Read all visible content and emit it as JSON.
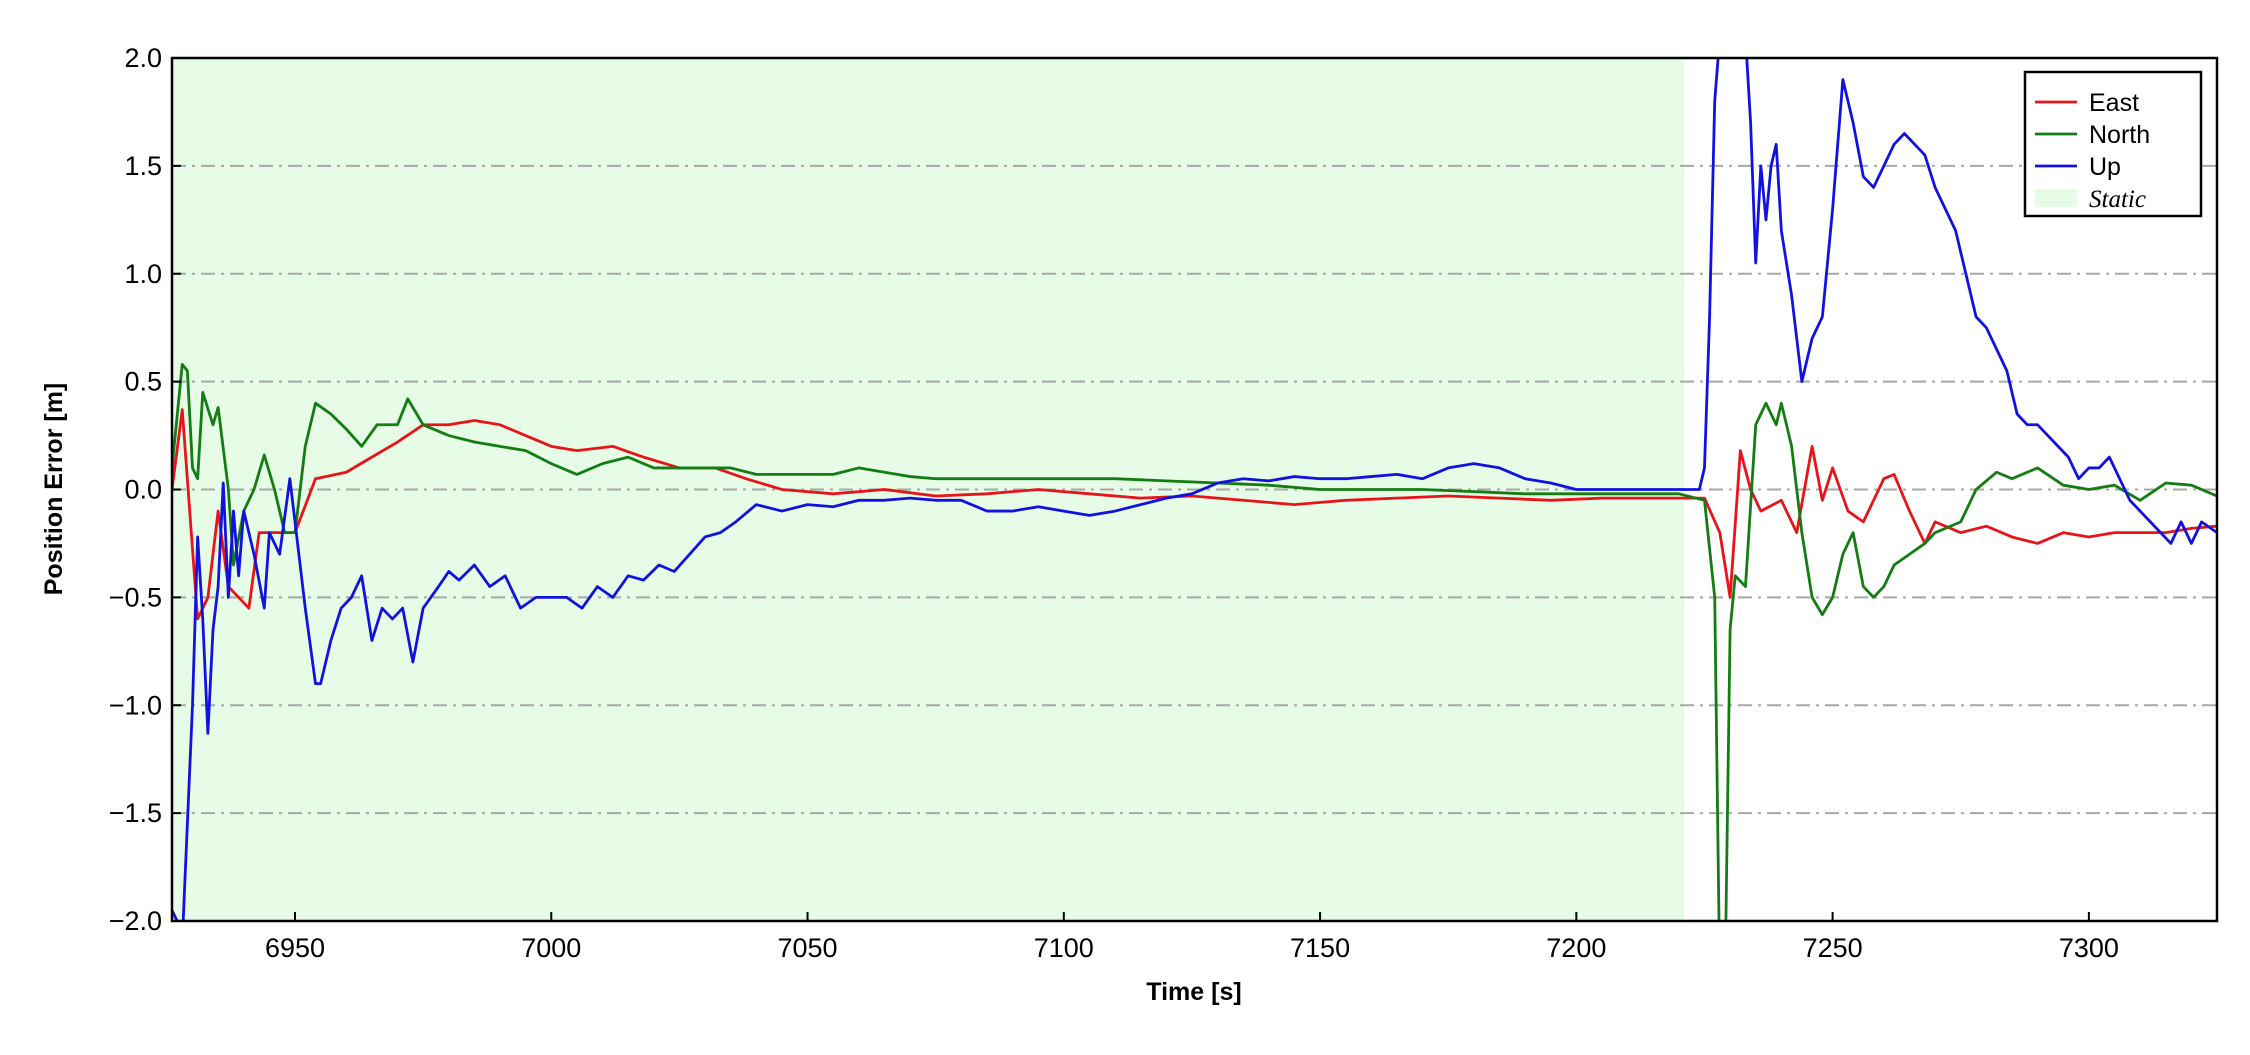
{
  "chart_data": {
    "type": "line",
    "xlabel": "Time [s]",
    "ylabel": "Position Error [m]",
    "xlim": [
      6926,
      7325
    ],
    "ylim": [
      -2,
      2
    ],
    "xticks": [
      6950,
      7000,
      7050,
      7100,
      7150,
      7200,
      7250,
      7300
    ],
    "yticks": [
      {
        "value": -2,
        "label": "−2.0"
      },
      {
        "value": -1.5,
        "label": "−1.5"
      },
      {
        "value": -1,
        "label": "−1.0"
      },
      {
        "value": -0.5,
        "label": "−0.5"
      },
      {
        "value": 0,
        "label": "0.0"
      },
      0.5,
      {
        "value": 1,
        "label": "1.0"
      },
      1.5,
      {
        "value": 2,
        "label": "2.0"
      }
    ],
    "grid": true,
    "legend": "upper right",
    "span": {
      "label": "Static",
      "x": [
        6926,
        7221
      ],
      "color": "#e6fce6"
    },
    "series": [
      {
        "name": "East",
        "color": "#e8141a",
        "x": [
          6926,
          6928,
          6931,
          6933,
          6935,
          6937,
          6941,
          6943,
          6948,
          6950,
          6954,
          6960,
          6965,
          6970,
          6975,
          6980,
          6985,
          6990,
          6995,
          7000,
          7005,
          7012,
          7018,
          7025,
          7032,
          7038,
          7045,
          7055,
          7065,
          7075,
          7085,
          7095,
          7105,
          7115,
          7125,
          7135,
          7145,
          7155,
          7165,
          7175,
          7185,
          7195,
          7205,
          7215,
          7225,
          7228,
          7230,
          7232,
          7234,
          7236,
          7240,
          7243,
          7246,
          7248,
          7250,
          7253,
          7256,
          7260,
          7262,
          7265,
          7268,
          7270,
          7275,
          7280,
          7285,
          7290,
          7295,
          7300,
          7305,
          7310,
          7315,
          7320,
          7325
        ],
        "values": [
          0,
          0.37,
          -0.6,
          -0.5,
          -0.1,
          -0.45,
          -0.55,
          -0.2,
          -0.2,
          -0.2,
          0.05,
          0.08,
          0.15,
          0.22,
          0.3,
          0.3,
          0.32,
          0.3,
          0.25,
          0.2,
          0.18,
          0.2,
          0.15,
          0.1,
          0.1,
          0.05,
          0,
          -0.02,
          0,
          -0.03,
          -0.02,
          0,
          -0.02,
          -0.04,
          -0.03,
          -0.05,
          -0.07,
          -0.05,
          -0.04,
          -0.03,
          -0.04,
          -0.05,
          -0.04,
          -0.04,
          -0.04,
          -0.2,
          -0.5,
          0.18,
          0,
          -0.1,
          -0.05,
          -0.2,
          0.2,
          -0.05,
          0.1,
          -0.1,
          -0.15,
          0.05,
          0.07,
          -0.1,
          -0.25,
          -0.15,
          -0.2,
          -0.17,
          -0.22,
          -0.25,
          -0.2,
          -0.22,
          -0.2,
          -0.2,
          -0.2,
          -0.18,
          -0.17
        ]
      },
      {
        "name": "North",
        "color": "#137d13",
        "x": [
          6926,
          6928,
          6929,
          6930,
          6931,
          6932,
          6934,
          6935,
          6937,
          6938,
          6940,
          6942,
          6944,
          6946,
          6948,
          6950,
          6952,
          6954,
          6957,
          6960,
          6963,
          6966,
          6970,
          6972,
          6975,
          6980,
          6985,
          6990,
          6995,
          7000,
          7005,
          7010,
          7015,
          7020,
          7025,
          7030,
          7035,
          7040,
          7045,
          7050,
          7055,
          7060,
          7065,
          7070,
          7075,
          7080,
          7090,
          7100,
          7110,
          7120,
          7130,
          7140,
          7150,
          7160,
          7170,
          7180,
          7190,
          7200,
          7210,
          7220,
          7225,
          7227,
          7228,
          7229,
          7230,
          7231,
          7233,
          7235,
          7237,
          7239,
          7240,
          7242,
          7244,
          7246,
          7248,
          7250,
          7252,
          7254,
          7256,
          7258,
          7260,
          7262,
          7265,
          7268,
          7270,
          7275,
          7278,
          7282,
          7285,
          7290,
          7295,
          7300,
          7305,
          7310,
          7315,
          7320,
          7325
        ],
        "values": [
          0.1,
          0.58,
          0.55,
          0.1,
          0.05,
          0.45,
          0.3,
          0.38,
          0,
          -0.35,
          -0.1,
          0,
          0.16,
          0,
          -0.2,
          -0.2,
          0.2,
          0.4,
          0.35,
          0.28,
          0.2,
          0.3,
          0.3,
          0.42,
          0.3,
          0.25,
          0.22,
          0.2,
          0.18,
          0.12,
          0.07,
          0.12,
          0.15,
          0.1,
          0.1,
          0.1,
          0.1,
          0.07,
          0.07,
          0.07,
          0.07,
          0.1,
          0.08,
          0.06,
          0.05,
          0.05,
          0.05,
          0.05,
          0.05,
          0.04,
          0.03,
          0.02,
          0,
          0,
          0,
          -0.01,
          -0.02,
          -0.02,
          -0.02,
          -0.02,
          -0.05,
          -0.5,
          -2.3,
          -2.3,
          -0.65,
          -0.4,
          -0.45,
          0.3,
          0.4,
          0.3,
          0.4,
          0.2,
          -0.2,
          -0.5,
          -0.58,
          -0.5,
          -0.3,
          -0.2,
          -0.45,
          -0.5,
          -0.45,
          -0.35,
          -0.3,
          -0.25,
          -0.2,
          -0.15,
          0,
          0.08,
          0.05,
          0.1,
          0.02,
          0,
          0.02,
          -0.05,
          0.03,
          0.02,
          -0.03
        ]
      },
      {
        "name": "Up",
        "color": "#1212e0",
        "x": [
          6926,
          6927,
          6928,
          6930,
          6931,
          6932,
          6933,
          6934,
          6935,
          6936,
          6937,
          6938,
          6939,
          6940,
          6942,
          6944,
          6945,
          6947,
          6949,
          6950,
          6952,
          6954,
          6955,
          6957,
          6959,
          6961,
          6963,
          6965,
          6967,
          6969,
          6971,
          6973,
          6975,
          6978,
          6980,
          6982,
          6985,
          6988,
          6991,
          6994,
          6997,
          7000,
          7003,
          7006,
          7009,
          7012,
          7015,
          7018,
          7021,
          7024,
          7027,
          7030,
          7033,
          7036,
          7040,
          7045,
          7050,
          7055,
          7060,
          7065,
          7070,
          7075,
          7080,
          7085,
          7090,
          7095,
          7100,
          7105,
          7110,
          7115,
          7120,
          7125,
          7130,
          7135,
          7140,
          7145,
          7150,
          7155,
          7160,
          7165,
          7170,
          7175,
          7180,
          7185,
          7190,
          7195,
          7200,
          7205,
          7210,
          7215,
          7220,
          7224,
          7225,
          7226,
          7227,
          7228,
          7233,
          7234,
          7235,
          7236,
          7237,
          7238,
          7239,
          7240,
          7242,
          7244,
          7246,
          7248,
          7250,
          7252,
          7254,
          7256,
          7258,
          7260,
          7262,
          7264,
          7266,
          7268,
          7270,
          7272,
          7274,
          7276,
          7278,
          7280,
          7282,
          7284,
          7286,
          7288,
          7290,
          7292,
          7294,
          7296,
          7298,
          7300,
          7302,
          7304,
          7306,
          7308,
          7310,
          7312,
          7314,
          7316,
          7318,
          7320,
          7322,
          7325
        ],
        "values": [
          -1.95,
          -2,
          -2.1,
          -1,
          -0.22,
          -0.6,
          -1.13,
          -0.65,
          -0.45,
          0.03,
          -0.5,
          -0.1,
          -0.4,
          -0.1,
          -0.3,
          -0.55,
          -0.2,
          -0.3,
          0.05,
          -0.15,
          -0.55,
          -0.9,
          -0.9,
          -0.7,
          -0.55,
          -0.5,
          -0.4,
          -0.7,
          -0.55,
          -0.6,
          -0.55,
          -0.8,
          -0.55,
          -0.45,
          -0.38,
          -0.42,
          -0.35,
          -0.45,
          -0.4,
          -0.55,
          -0.5,
          -0.5,
          -0.5,
          -0.55,
          -0.45,
          -0.5,
          -0.4,
          -0.42,
          -0.35,
          -0.38,
          -0.3,
          -0.22,
          -0.2,
          -0.15,
          -0.07,
          -0.1,
          -0.07,
          -0.08,
          -0.05,
          -0.05,
          -0.04,
          -0.05,
          -0.05,
          -0.1,
          -0.1,
          -0.08,
          -0.1,
          -0.12,
          -0.1,
          -0.07,
          -0.04,
          -0.02,
          0.03,
          0.05,
          0.04,
          0.06,
          0.05,
          0.05,
          0.06,
          0.07,
          0.05,
          0.1,
          0.12,
          0.1,
          0.05,
          0.03,
          0,
          0,
          0,
          0,
          0,
          0,
          0.1,
          0.8,
          1.8,
          2.1,
          2.1,
          1.7,
          1.05,
          1.5,
          1.25,
          1.5,
          1.6,
          1.2,
          0.9,
          0.5,
          0.7,
          0.8,
          1.3,
          1.9,
          1.7,
          1.45,
          1.4,
          1.5,
          1.6,
          1.65,
          1.6,
          1.55,
          1.4,
          1.3,
          1.2,
          1,
          0.8,
          0.75,
          0.65,
          0.55,
          0.35,
          0.3,
          0.3,
          0.25,
          0.2,
          0.15,
          0.05,
          0.1,
          0.1,
          0.15,
          0.05,
          -0.05,
          -0.1,
          -0.15,
          -0.2,
          -0.25,
          -0.15,
          -0.25,
          -0.15,
          -0.2
        ]
      }
    ]
  }
}
